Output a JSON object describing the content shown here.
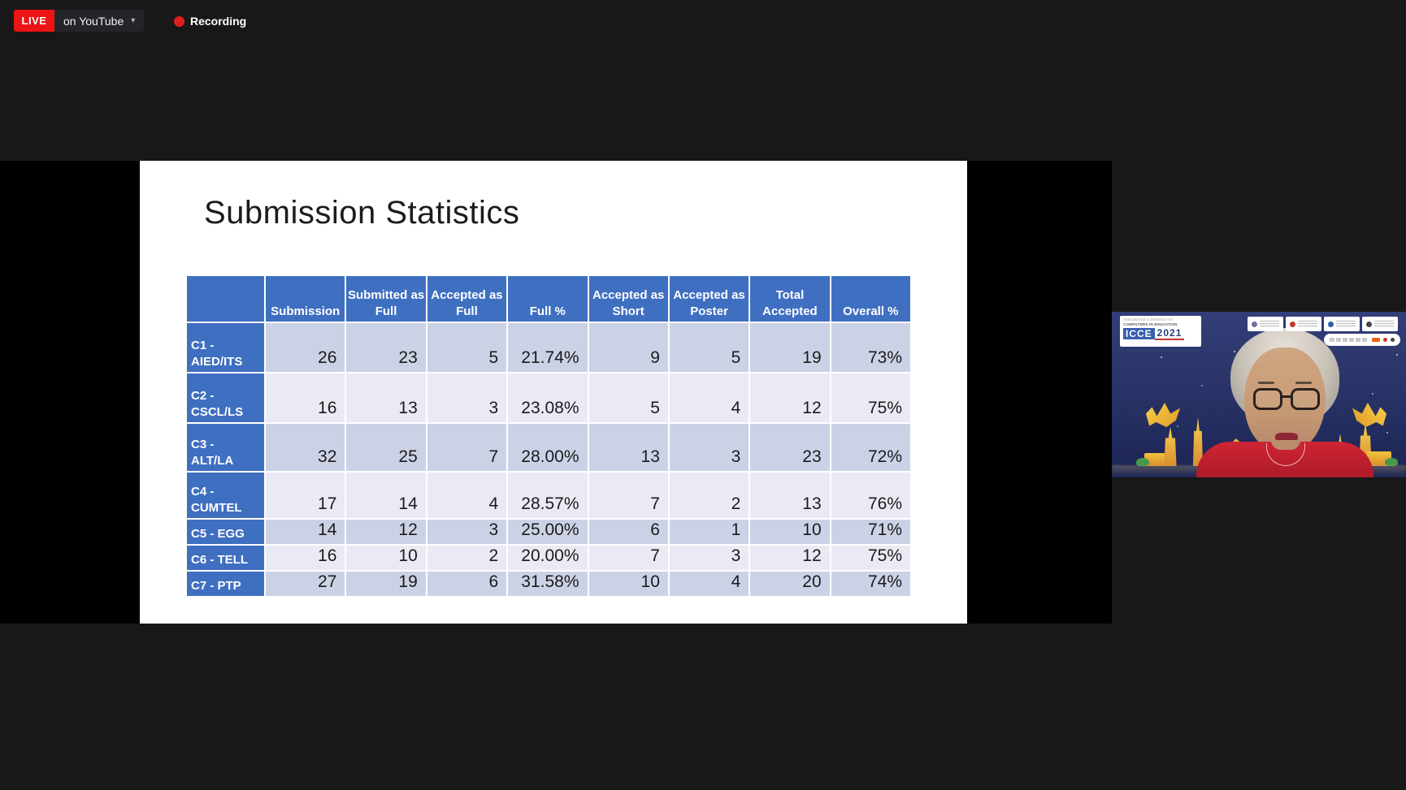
{
  "stream_bar": {
    "live_label": "LIVE",
    "platform_label": "on YouTube",
    "recording_label": "Recording",
    "live_color": "#ec1414",
    "recording_dot_color": "#e02020"
  },
  "slide": {
    "title": "Submission Statistics",
    "table": {
      "header_fill": "#3f6fc1",
      "band_dark": "#ccd2e6",
      "band_light": "#e9eaf4",
      "columns": [
        "",
        "Submission",
        "Submitted as Full",
        "Accepted as Full",
        "Full %",
        "Accepted as Short",
        "Accepted as Poster",
        "Total Accepted",
        "Overall %"
      ],
      "rows": [
        {
          "label": "C1 -\nAIED/ITS",
          "values": [
            "26",
            "23",
            "5",
            "21.74%",
            "9",
            "5",
            "19",
            "73%"
          ]
        },
        {
          "label": "C2 -\nCSCL/LS",
          "values": [
            "16",
            "13",
            "3",
            "23.08%",
            "5",
            "4",
            "12",
            "75%"
          ]
        },
        {
          "label": "C3 -\nALT/LA",
          "values": [
            "32",
            "25",
            "7",
            "28.00%",
            "13",
            "3",
            "23",
            "72%"
          ]
        },
        {
          "label": "C4 -\nCUMTEL",
          "values": [
            "17",
            "14",
            "4",
            "28.57%",
            "7",
            "2",
            "13",
            "76%"
          ]
        },
        {
          "label": "C5 - EGG",
          "values": [
            "14",
            "12",
            "3",
            "25.00%",
            "6",
            "1",
            "10",
            "71%"
          ]
        },
        {
          "label": "C6 - TELL",
          "values": [
            "16",
            "10",
            "2",
            "20.00%",
            "7",
            "3",
            "12",
            "75%"
          ]
        },
        {
          "label": "C7 - PTP",
          "values": [
            "27",
            "19",
            "6",
            "31.58%",
            "10",
            "4",
            "20",
            "74%"
          ]
        }
      ]
    }
  },
  "webcam": {
    "icce_logo": {
      "line1": "International Conference on",
      "line2": "COMPUTERS IN EDUCATION",
      "brand": "ICCE",
      "year": "2021"
    }
  }
}
